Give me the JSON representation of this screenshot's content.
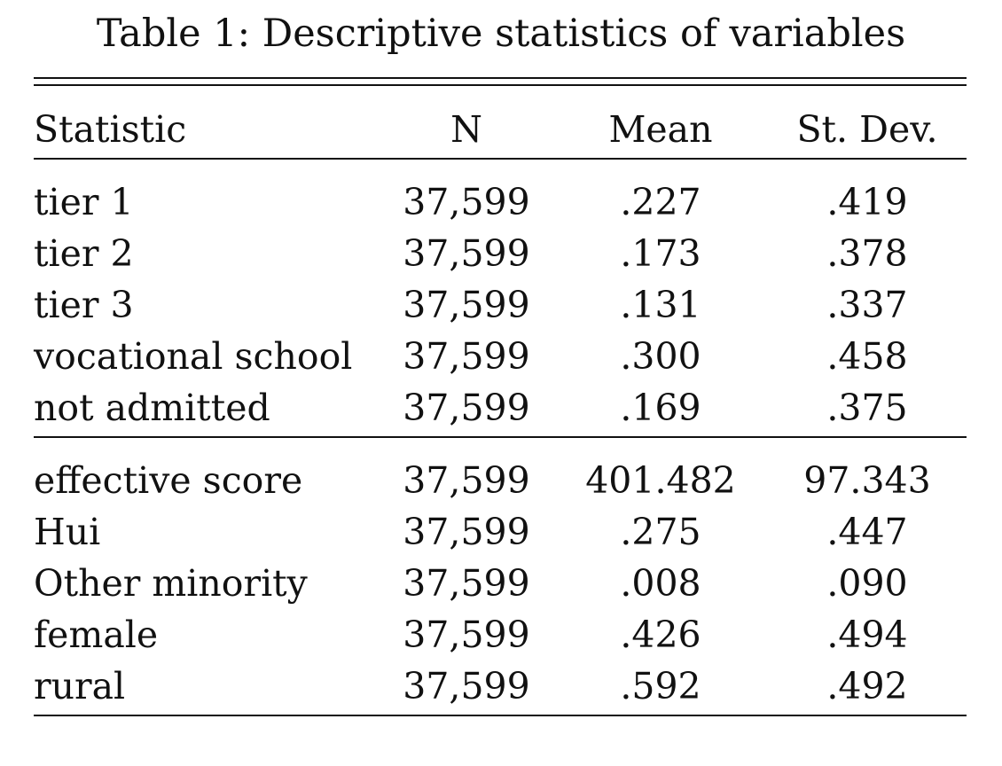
{
  "table": {
    "caption": "Table 1: Descriptive statistics of variables",
    "headers": [
      "Statistic",
      "N",
      "Mean",
      "St. Dev."
    ],
    "panel1": [
      {
        "statistic": "tier 1",
        "n": "37,599",
        "mean": ".227",
        "sd": ".419"
      },
      {
        "statistic": "tier 2",
        "n": "37,599",
        "mean": ".173",
        "sd": ".378"
      },
      {
        "statistic": "tier 3",
        "n": "37,599",
        "mean": ".131",
        "sd": ".337"
      },
      {
        "statistic": "vocational school",
        "n": "37,599",
        "mean": ".300",
        "sd": ".458"
      },
      {
        "statistic": "not admitted",
        "n": "37,599",
        "mean": ".169",
        "sd": ".375"
      }
    ],
    "panel2": [
      {
        "statistic": "effective score",
        "n": "37,599",
        "mean": "401.482",
        "sd": "97.343"
      },
      {
        "statistic": "Hui",
        "n": "37,599",
        "mean": ".275",
        "sd": ".447"
      },
      {
        "statistic": "Other minority",
        "n": "37,599",
        "mean": ".008",
        "sd": ".090"
      },
      {
        "statistic": "female",
        "n": "37,599",
        "mean": ".426",
        "sd": ".494"
      },
      {
        "statistic": "rural",
        "n": "37,599",
        "mean": ".592",
        "sd": ".492"
      }
    ]
  }
}
